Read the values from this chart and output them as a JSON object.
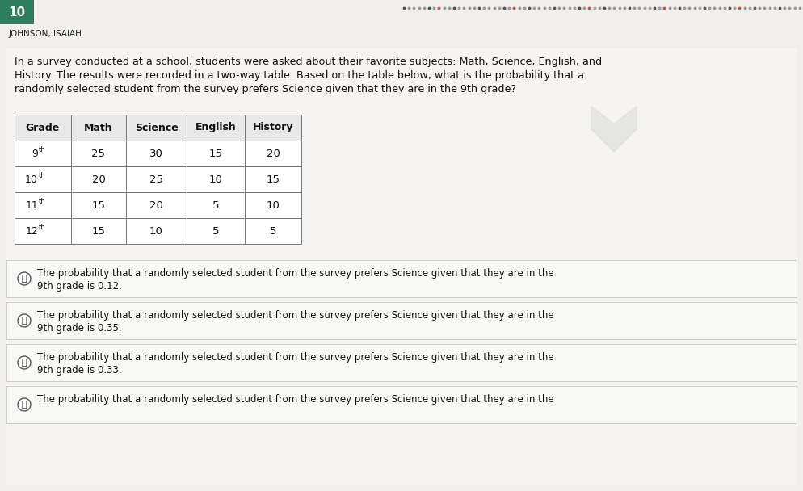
{
  "header_name": "JOHNSON, ISAIAH",
  "question_text_line1": "In a survey conducted at a school, students were asked about their favorite subjects: Math, Science, English, and",
  "question_text_line2": "History. The results were recorded in a two-way table. Based on the table below, what is the probability that a",
  "question_text_line3": "randomly selected student from the survey prefers Science given that they are in the 9th grade?",
  "table_headers": [
    "Grade",
    "Math",
    "Science",
    "English",
    "History"
  ],
  "table_rows": [
    [
      "9th",
      "25",
      "30",
      "15",
      "20"
    ],
    [
      "10th",
      "20",
      "25",
      "10",
      "15"
    ],
    [
      "11th",
      "15",
      "20",
      "5",
      "10"
    ],
    [
      "12th",
      "15",
      "10",
      "5",
      "5"
    ]
  ],
  "table_superscripts": [
    "th",
    "th",
    "th",
    "th"
  ],
  "answer_choices": [
    {
      "label": "A",
      "text1": "The probability that a randomly selected student from the survey prefers Science given that they are in the",
      "text2": "9th grade is 0.12."
    },
    {
      "label": "B",
      "text1": "The probability that a randomly selected student from the survey prefers Science given that they are in the",
      "text2": "9th grade is 0.35."
    },
    {
      "label": "C",
      "text1": "The probability that a randomly selected student from the survey prefers Science given that they are in the",
      "text2": "9th grade is 0.33."
    },
    {
      "label": "D",
      "text1": "The probability that a randomly selected student from the survey prefers Science given that they are in the",
      "text2": ""
    }
  ],
  "bg_color_top": "#3a8a6e",
  "bg_color_main": "#f0efed",
  "bg_color_white": "#f5f4f2",
  "tab_bg": "#e8e7e5",
  "box_bg": "#f8f8f8",
  "box_border": "#cccccc",
  "text_dark": "#1a1a1a",
  "dots_colors": [
    "#888888",
    "#aaaaaa",
    "#cc4444",
    "#888888"
  ],
  "number_10_color": "#ffffff",
  "number_10_bg": "#2e7d5e"
}
